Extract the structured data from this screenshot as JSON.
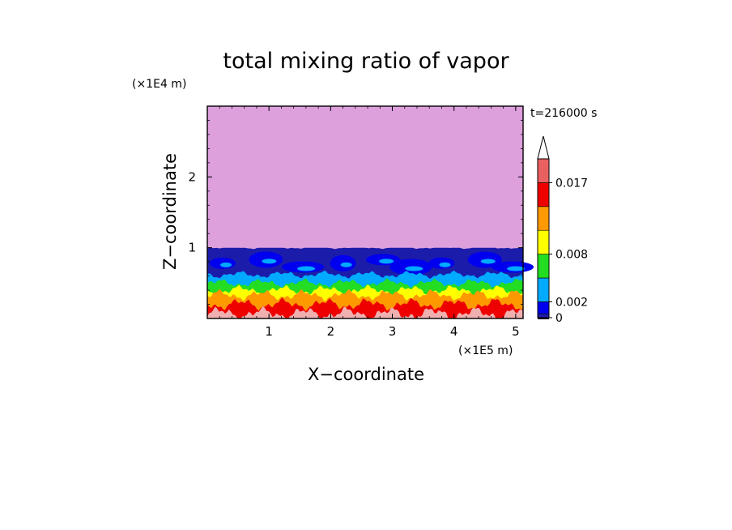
{
  "chart_data": {
    "type": "heatmap",
    "title": "total mixing ratio of vapor",
    "xlabel": "X−coordinate",
    "ylabel": "Z−coordinate",
    "x_unit": "(×1E5 m)",
    "y_unit": "(×1E4 m)",
    "time_label": "t=216000 s",
    "xlim": [
      0,
      5.12
    ],
    "ylim": [
      0,
      3.0
    ],
    "x_ticks": [
      "1",
      "2",
      "3",
      "4",
      "5"
    ],
    "x_tick_values": [
      1,
      2,
      3,
      4,
      5
    ],
    "y_ticks": [
      "1",
      "2"
    ],
    "y_tick_values": [
      1,
      2
    ],
    "colorbar": {
      "tick_labels": [
        "0.017",
        "0.008",
        "0.002",
        "0"
      ],
      "tick_values": [
        0.017,
        0.008,
        0.002,
        0
      ],
      "max_arrow": true,
      "levels": [
        0,
        0.0005,
        0.002,
        0.005,
        0.008,
        0.011,
        0.014,
        0.017,
        0.02
      ],
      "colors": [
        "#000000",
        "#1c1caa",
        "#0000ee",
        "#00aaff",
        "#22dd22",
        "#ffff00",
        "#ff9900",
        "#ee0000",
        "#e86060",
        "#f0b0b0"
      ]
    },
    "upper_region": {
      "description_value": "above about z = 1.0 (x1E4 m)",
      "fill": "#dda0dd"
    },
    "layers": [
      {
        "band_top_z": 1.0,
        "color": "#1c1caa"
      },
      {
        "band_top_z": 0.62,
        "color": "#00aaff"
      },
      {
        "band_top_z": 0.5,
        "color": "#22dd22"
      },
      {
        "band_top_z": 0.4,
        "color": "#ffff00"
      },
      {
        "band_top_z": 0.33,
        "color": "#ff9900"
      },
      {
        "band_top_z": 0.2,
        "color": "#ee0000"
      },
      {
        "band_top_z": 0.07,
        "color": "#f0b0b0"
      }
    ]
  }
}
